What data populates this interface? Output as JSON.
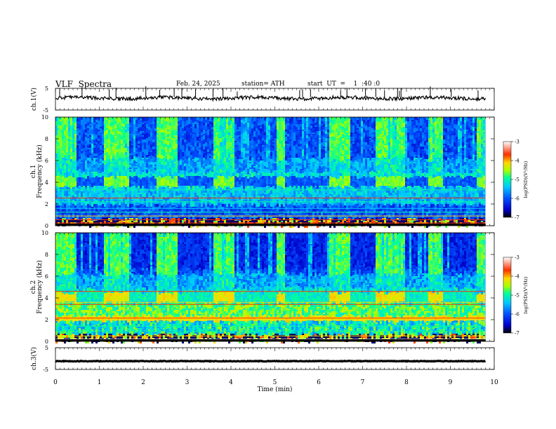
{
  "header": {
    "title": "VLF  Spectra",
    "date": "Feb. 24, 2025",
    "station": "station= ATH",
    "start_ut": "start  UT  =    1  :40 :0"
  },
  "chart_data": [
    {
      "type": "line",
      "id": "ch1-waveform",
      "ylabel": "ch.1(V)",
      "ylim": [
        -5,
        5
      ],
      "y_ticks": [
        "5",
        "-5"
      ],
      "description_level": 0.5
    },
    {
      "type": "heatmap",
      "id": "ch1-spectrogram",
      "ylabel": "ch.1\nFrequency  (kHz)",
      "ylabel_line1": "ch.1",
      "ylabel_line2": "Frequency  (kHz)",
      "ylim": [
        0,
        10
      ],
      "y_ticks": [
        "0",
        "2",
        "4",
        "6",
        "8",
        "10"
      ],
      "colorbar": {
        "label": "log(PSD)(V²/Hz)",
        "range": [
          -7,
          -3
        ],
        "ticks": [
          "-3",
          "-4",
          "-5",
          "-6",
          "-7"
        ]
      }
    },
    {
      "type": "heatmap",
      "id": "ch2-spectrogram",
      "ylabel_line1": "ch.2",
      "ylabel_line2": "Frequency  (kHz)",
      "ylim": [
        0,
        10
      ],
      "y_ticks": [
        "0",
        "2",
        "4",
        "6",
        "8",
        "10"
      ],
      "colorbar": {
        "label": "log(PSD)(V²/Hz)",
        "range": [
          -7,
          -3
        ],
        "ticks": [
          "-3",
          "-4",
          "-5",
          "-6",
          "-7"
        ]
      }
    },
    {
      "type": "line",
      "id": "ch3-waveform",
      "ylabel": "ch.3(V)",
      "ylim": [
        -5,
        5
      ],
      "y_ticks": [
        "5",
        "-5"
      ],
      "description_level": -1.2
    }
  ],
  "x_axis": {
    "label": "Time  (min)",
    "range": [
      0,
      10
    ],
    "ticks": [
      "0",
      "1",
      "2",
      "3",
      "4",
      "5",
      "6",
      "7",
      "8",
      "9",
      "10"
    ],
    "data_end": 9.8
  },
  "colors": {
    "colormap": [
      "#000000",
      "#0000c8",
      "#0050ff",
      "#00c8ff",
      "#00ff9a",
      "#a8ff00",
      "#ffd800",
      "#ff3000",
      "#ffffff"
    ]
  }
}
